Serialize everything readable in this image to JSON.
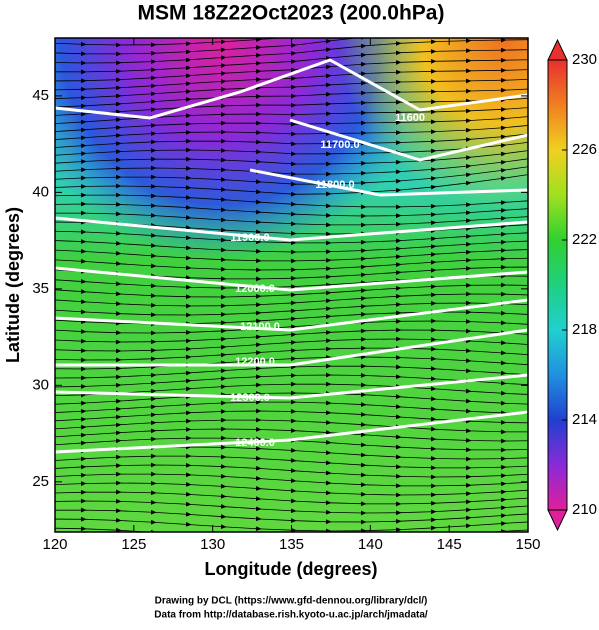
{
  "title": "MSM 18Z22Oct2023 (200.0hPa)",
  "x_axis": {
    "label": "Longitude (degrees)",
    "lim": [
      120,
      150
    ],
    "ticks": [
      120,
      125,
      130,
      135,
      140,
      145,
      150
    ]
  },
  "y_axis": {
    "label": "Latitude  (degrees)",
    "lim": [
      22.4,
      48
    ],
    "ticks": [
      25,
      30,
      35,
      40,
      45
    ]
  },
  "colorbar": {
    "lim": [
      210,
      230
    ],
    "ticks": [
      210,
      214,
      218,
      222,
      226,
      230
    ]
  },
  "contours": [
    {
      "value": 11600,
      "label": "11600"
    },
    {
      "value": 11700,
      "label": "11700.0"
    },
    {
      "value": 11800,
      "label": "11800.0"
    },
    {
      "value": 11900,
      "label": "11900.0"
    },
    {
      "value": 12000,
      "label": "12000.0"
    },
    {
      "value": 12100,
      "label": "12100.0"
    },
    {
      "value": 12200,
      "label": "12200.0"
    },
    {
      "value": 12300,
      "label": "12300.0"
    },
    {
      "value": 12400,
      "label": "12400.0"
    }
  ],
  "credits": [
    "Drawing by DCL (https://www.gfd-dennou.org/library/dcl/)",
    "Data from http://database.rish.kyoto-u.ac.jp/arch/jmadata/"
  ]
}
